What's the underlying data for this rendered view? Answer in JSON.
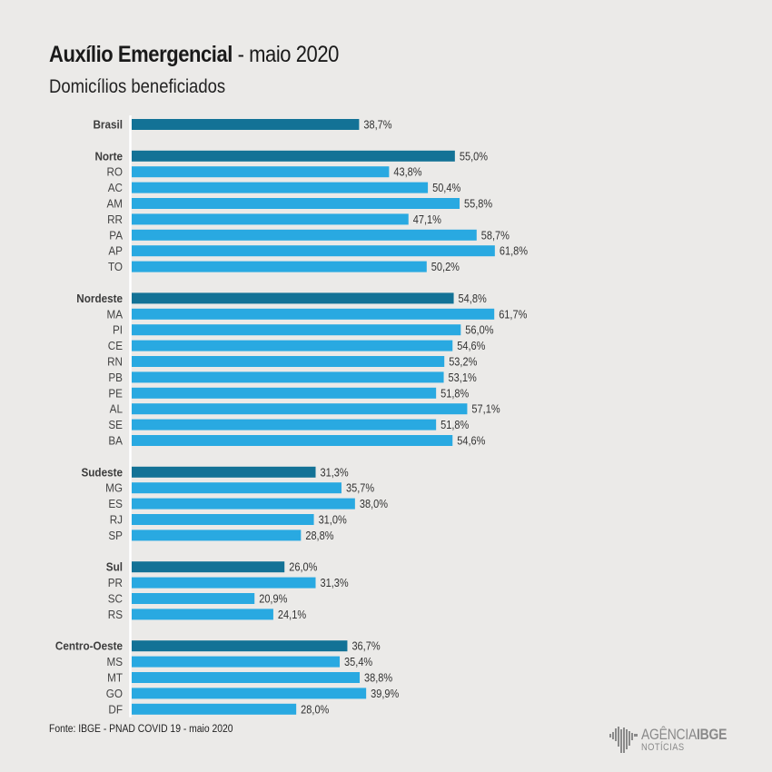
{
  "header": {
    "title_bold": "Auxílio Emergencial",
    "title_rest": " - maio 2020",
    "subtitle": "Domicílios beneficiados"
  },
  "footer": {
    "source": "Fonte: IBGE - PNAD COVID 19 - maio 2020",
    "logo_brand_light": "AGÊNCIA",
    "logo_brand_bold": "IBGE",
    "logo_sub": "NOTÍCIAS"
  },
  "colors": {
    "background": "#ebeae8",
    "region_bar": "#137296",
    "state_bar": "#29a9e1",
    "axis": "#ffffff"
  },
  "chart_data": {
    "type": "bar",
    "orientation": "horizontal",
    "title": "Auxílio Emergencial - maio 2020",
    "subtitle": "Domicílios beneficiados",
    "xlabel": "",
    "ylabel": "",
    "unit": "%",
    "xlim": [
      0,
      65
    ],
    "grid": false,
    "legend": "none",
    "groups": [
      {
        "name": "Brasil",
        "value": 38.7,
        "label": "38,7%",
        "items": []
      },
      {
        "name": "Norte",
        "value": 55.0,
        "label": "55,0%",
        "items": [
          {
            "name": "RO",
            "value": 43.8,
            "label": "43,8%"
          },
          {
            "name": "AC",
            "value": 50.4,
            "label": "50,4%"
          },
          {
            "name": "AM",
            "value": 55.8,
            "label": "55,8%"
          },
          {
            "name": "RR",
            "value": 47.1,
            "label": "47,1%"
          },
          {
            "name": "PA",
            "value": 58.7,
            "label": "58,7%"
          },
          {
            "name": "AP",
            "value": 61.8,
            "label": "61,8%"
          },
          {
            "name": "TO",
            "value": 50.2,
            "label": "50,2%"
          }
        ]
      },
      {
        "name": "Nordeste",
        "value": 54.8,
        "label": "54,8%",
        "items": [
          {
            "name": "MA",
            "value": 61.7,
            "label": "61,7%"
          },
          {
            "name": "PI",
            "value": 56.0,
            "label": "56,0%"
          },
          {
            "name": "CE",
            "value": 54.6,
            "label": "54,6%"
          },
          {
            "name": "RN",
            "value": 53.2,
            "label": "53,2%"
          },
          {
            "name": "PB",
            "value": 53.1,
            "label": "53,1%"
          },
          {
            "name": "PE",
            "value": 51.8,
            "label": "51,8%"
          },
          {
            "name": "AL",
            "value": 57.1,
            "label": "57,1%"
          },
          {
            "name": "SE",
            "value": 51.8,
            "label": "51,8%"
          },
          {
            "name": "BA",
            "value": 54.6,
            "label": "54,6%"
          }
        ]
      },
      {
        "name": "Sudeste",
        "value": 31.3,
        "label": "31,3%",
        "items": [
          {
            "name": "MG",
            "value": 35.7,
            "label": "35,7%"
          },
          {
            "name": "ES",
            "value": 38.0,
            "label": "38,0%"
          },
          {
            "name": "RJ",
            "value": 31.0,
            "label": "31,0%"
          },
          {
            "name": "SP",
            "value": 28.8,
            "label": "28,8%"
          }
        ]
      },
      {
        "name": "Sul",
        "value": 26.0,
        "label": "26,0%",
        "items": [
          {
            "name": "PR",
            "value": 31.3,
            "label": "31,3%"
          },
          {
            "name": "SC",
            "value": 20.9,
            "label": "20,9%"
          },
          {
            "name": "RS",
            "value": 24.1,
            "label": "24,1%"
          }
        ]
      },
      {
        "name": "Centro-Oeste",
        "value": 36.7,
        "label": "36,7%",
        "items": [
          {
            "name": "MS",
            "value": 35.4,
            "label": "35,4%"
          },
          {
            "name": "MT",
            "value": 38.8,
            "label": "38,8%"
          },
          {
            "name": "GO",
            "value": 39.9,
            "label": "39,9%"
          },
          {
            "name": "DF",
            "value": 28.0,
            "label": "28,0%"
          }
        ]
      }
    ]
  }
}
